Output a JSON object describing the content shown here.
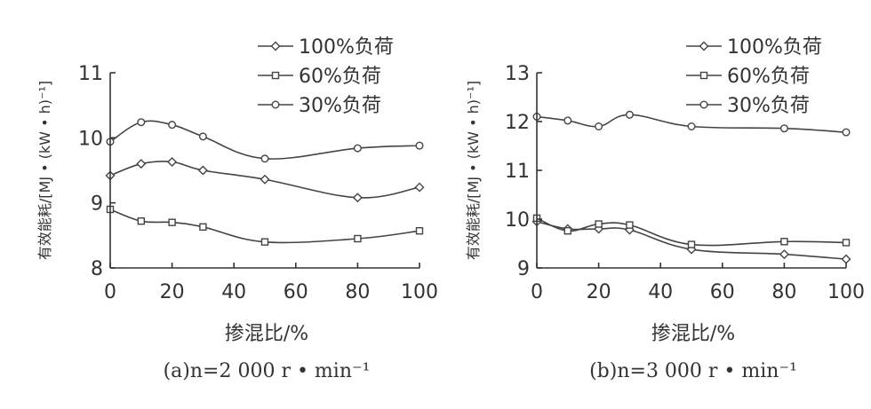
{
  "chart_data": [
    {
      "type": "line",
      "caption": "(a)n=2 000 r • min⁻¹",
      "xlabel": "掺混比/%",
      "ylabel": "有效能耗/[MJ • (kW • h)⁻¹]",
      "xlim": [
        0,
        100
      ],
      "ylim": [
        8,
        11
      ],
      "xticks": [
        0,
        20,
        40,
        60,
        80,
        100
      ],
      "yticks": [
        8,
        9,
        10,
        11
      ],
      "legend_position": "top-right",
      "series": [
        {
          "name": "100%负荷",
          "marker": "diamond",
          "x": [
            0,
            10,
            20,
            30,
            50,
            80,
            100
          ],
          "y": [
            9.42,
            9.6,
            9.63,
            9.5,
            9.36,
            9.08,
            9.24
          ]
        },
        {
          "name": "60%负荷",
          "marker": "square",
          "x": [
            0,
            10,
            20,
            30,
            50,
            80,
            100
          ],
          "y": [
            8.9,
            8.72,
            8.7,
            8.63,
            8.4,
            8.45,
            8.57
          ]
        },
        {
          "name": "30%负荷",
          "marker": "circle",
          "x": [
            0,
            10,
            20,
            30,
            50,
            80,
            100
          ],
          "y": [
            9.94,
            10.24,
            10.2,
            10.02,
            9.68,
            9.84,
            9.88
          ]
        }
      ]
    },
    {
      "type": "line",
      "caption": "(b)n=3 000 r • min⁻¹",
      "xlabel": "掺混比/%",
      "ylabel": "有效能耗/[MJ • (kW • h)⁻¹]",
      "xlim": [
        0,
        100
      ],
      "ylim": [
        9,
        13
      ],
      "xticks": [
        0,
        20,
        40,
        60,
        80,
        100
      ],
      "yticks": [
        9,
        10,
        11,
        12,
        13
      ],
      "legend_position": "top-right",
      "series": [
        {
          "name": "100%负荷",
          "marker": "diamond",
          "x": [
            0,
            10,
            20,
            30,
            50,
            80,
            100
          ],
          "y": [
            9.95,
            9.8,
            9.8,
            9.78,
            9.38,
            9.28,
            9.18
          ]
        },
        {
          "name": "60%负荷",
          "marker": "square",
          "x": [
            0,
            10,
            20,
            30,
            50,
            80,
            100
          ],
          "y": [
            10.02,
            9.76,
            9.9,
            9.88,
            9.48,
            9.54,
            9.52
          ]
        },
        {
          "name": "30%负荷",
          "marker": "circle",
          "x": [
            0,
            10,
            20,
            30,
            50,
            80,
            100
          ],
          "y": [
            12.1,
            12.02,
            11.9,
            12.14,
            11.9,
            11.86,
            11.78
          ]
        }
      ]
    }
  ]
}
